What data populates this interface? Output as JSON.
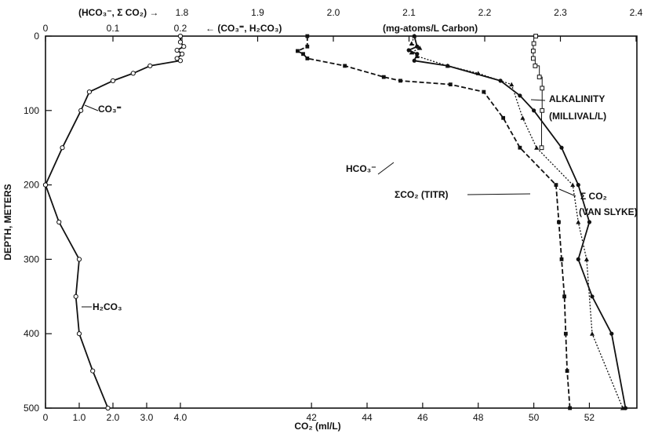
{
  "chart_data": {
    "type": "line",
    "bottom_axis": {
      "label": "CO₂ (ml/L)",
      "range": [
        0,
        53.4
      ],
      "ticks": [
        {
          "v": 0,
          "t": "0"
        },
        {
          "v": 1,
          "t": "1.0"
        },
        {
          "v": 2,
          "t": "2.0"
        },
        {
          "v": 3,
          "t": "3.0"
        },
        {
          "v": 4,
          "t": "4.0"
        },
        {
          "v": 42,
          "t": "42"
        },
        {
          "v": 44,
          "t": "44"
        },
        {
          "v": 46,
          "t": "46"
        },
        {
          "v": 48,
          "t": "48"
        },
        {
          "v": 50,
          "t": "50"
        },
        {
          "v": 52,
          "t": "52"
        }
      ]
    },
    "left_axis": {
      "label": "DEPTH, METERS",
      "range": [
        0,
        500
      ],
      "ticks": [
        {
          "v": 0,
          "t": "0"
        },
        {
          "v": 100,
          "t": "100"
        },
        {
          "v": 200,
          "t": "200"
        },
        {
          "v": 300,
          "t": "300"
        },
        {
          "v": 400,
          "t": "400"
        },
        {
          "v": 500,
          "t": "500"
        }
      ]
    },
    "top_axis_co3": {
      "label": "← (CO₃⁼, H₂CO₃)",
      "ticks": [
        {
          "v": 0,
          "t": "0"
        },
        {
          "v": 0.1,
          "t": "0.1"
        },
        {
          "v": 0.2,
          "t": "0.2"
        }
      ]
    },
    "top_axis_hco3": {
      "label": "(HCO₃⁻, Σ CO₂) →",
      "units": "(mg-atoms/L  Carbon)",
      "ticks": [
        {
          "v": 1.8,
          "t": "1.8"
        },
        {
          "v": 1.9,
          "t": "1.9"
        },
        {
          "v": 2.0,
          "t": "2.0"
        },
        {
          "v": 2.1,
          "t": "2.1"
        },
        {
          "v": 2.2,
          "t": "2.2"
        },
        {
          "v": 2.3,
          "t": "2.3"
        },
        {
          "v": 2.4,
          "t": "2.4"
        }
      ]
    },
    "grid": false,
    "series": [
      {
        "name": "CO₃⁼",
        "marker": "circle",
        "style": "solid",
        "points": [
          [
            4.0,
            0
          ],
          [
            4.0,
            8
          ],
          [
            4.1,
            14
          ],
          [
            3.9,
            19
          ],
          [
            4.05,
            24
          ],
          [
            3.9,
            30
          ],
          [
            4.0,
            33
          ],
          [
            3.1,
            40
          ],
          [
            2.6,
            50
          ],
          [
            2.0,
            60
          ],
          [
            1.3,
            75
          ],
          [
            1.05,
            100
          ],
          [
            0.5,
            150
          ],
          [
            0.0,
            200
          ]
        ]
      },
      {
        "name": "H₂CO₃",
        "marker": "circle",
        "style": "solid",
        "points": [
          [
            0.0,
            200
          ],
          [
            0.4,
            250
          ],
          [
            1.0,
            300
          ],
          [
            0.9,
            350
          ],
          [
            1.0,
            400
          ],
          [
            1.4,
            450
          ],
          [
            1.85,
            500
          ]
        ]
      },
      {
        "name": "HCO₃⁻",
        "marker": "square",
        "style": "dashed",
        "points": [
          [
            41.85,
            0
          ],
          [
            41.85,
            14
          ],
          [
            41.5,
            20
          ],
          [
            41.7,
            24
          ],
          [
            41.85,
            30
          ],
          [
            43.2,
            40
          ],
          [
            44.6,
            55
          ],
          [
            45.2,
            60
          ],
          [
            47.0,
            65
          ],
          [
            48.2,
            75
          ],
          [
            48.9,
            110
          ],
          [
            49.5,
            150
          ],
          [
            50.8,
            200
          ],
          [
            50.9,
            250
          ],
          [
            51.0,
            300
          ],
          [
            51.1,
            350
          ],
          [
            51.15,
            400
          ],
          [
            51.2,
            450
          ],
          [
            51.3,
            500
          ]
        ]
      },
      {
        "name": "Σ CO₂ (TITR)",
        "marker": "triangle",
        "style": "dotted",
        "points": [
          [
            45.7,
            0
          ],
          [
            45.6,
            10
          ],
          [
            45.9,
            16
          ],
          [
            45.6,
            22
          ],
          [
            45.8,
            27
          ],
          [
            46.9,
            40
          ],
          [
            48.0,
            50
          ],
          [
            49.2,
            65
          ],
          [
            49.6,
            110
          ],
          [
            50.1,
            150
          ],
          [
            51.4,
            200
          ],
          [
            51.6,
            250
          ],
          [
            51.9,
            300
          ],
          [
            52.1,
            400
          ],
          [
            53.2,
            500
          ]
        ]
      },
      {
        "name": "Σ CO₂ (VAN SLYKE)",
        "marker": "dot",
        "style": "solid",
        "points": [
          [
            45.7,
            0
          ],
          [
            45.8,
            14
          ],
          [
            45.5,
            19
          ],
          [
            45.8,
            24
          ],
          [
            45.7,
            33
          ],
          [
            46.9,
            40
          ],
          [
            48.8,
            60
          ],
          [
            49.5,
            80
          ],
          [
            50.0,
            100
          ],
          [
            51.0,
            150
          ],
          [
            51.6,
            200
          ],
          [
            52.0,
            250
          ],
          [
            51.6,
            300
          ],
          [
            52.1,
            350
          ],
          [
            52.8,
            400
          ],
          [
            53.3,
            500
          ]
        ]
      },
      {
        "name": "ALKALINITY (MILLIVAL/L)",
        "marker": "square-open",
        "style": "solid-thin",
        "points": [
          [
            50.07,
            0
          ],
          [
            50.0,
            10
          ],
          [
            49.98,
            20
          ],
          [
            49.98,
            30
          ],
          [
            50.05,
            40
          ],
          [
            50.2,
            55
          ],
          [
            50.3,
            70
          ],
          [
            50.3,
            100
          ],
          [
            50.28,
            150
          ]
        ]
      }
    ],
    "annotations": [
      {
        "text": "CO₃⁼",
        "series": "CO₃⁼"
      },
      {
        "text": "H₂CO₃",
        "series": "H₂CO₃"
      },
      {
        "text": "HCO₃⁻",
        "series": "HCO₃⁻"
      },
      {
        "text": "ΣCO₂ (TITR)",
        "series": "Σ CO₂ (TITR)"
      },
      {
        "text": "ALKALINITY",
        "series": "ALKALINITY (MILLIVAL/L)"
      },
      {
        "text": "(MILLIVAL/L)",
        "series": "ALKALINITY (MILLIVAL/L)"
      },
      {
        "text": "Σ CO₂",
        "series": "Σ CO₂ (VAN SLYKE)"
      },
      {
        "text": "(VAN SLYKE)",
        "series": "Σ CO₂ (VAN SLYKE)"
      }
    ]
  }
}
